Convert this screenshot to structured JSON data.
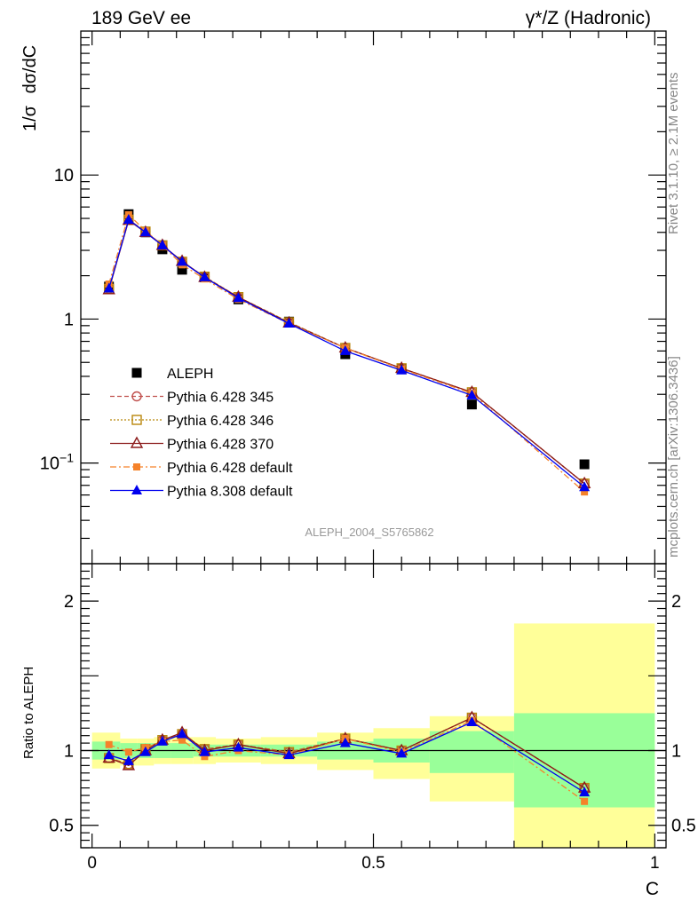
{
  "header": {
    "left": "189 GeV ee",
    "right": "γ*/Z (Hadronic)"
  },
  "side_text": {
    "rivet": "Rivet 3.1.10, ≥ 2.1M events",
    "mcplots": "mcplots.cern.ch [arXiv:1306.3436]"
  },
  "watermark": "ALEPH_2004_S5765862",
  "colors": {
    "aleph": "#000000",
    "p345": "#c0504d",
    "p346": "#b8860b",
    "p370": "#8b1a1a",
    "p6default": "#f5822a",
    "p8default": "#0000ee",
    "band_inner": "#99ff99",
    "band_outer": "#ffff99"
  },
  "chart_data": [
    {
      "type": "scatter",
      "panel": "main",
      "ylabel_parts": [
        "1/σ",
        "dσ/dC"
      ],
      "yscale": "log",
      "ylim": [
        0.02,
        100
      ],
      "xlim": [
        -0.02,
        1.02
      ],
      "yticks": [
        {
          "value": 10,
          "label": "10"
        },
        {
          "value": 1,
          "label": "1"
        },
        {
          "value": 0.1,
          "base": "10",
          "exp": "−1"
        }
      ],
      "legend_position": "lower-left",
      "x": [
        0.03,
        0.065,
        0.095,
        0.125,
        0.16,
        0.2,
        0.26,
        0.35,
        0.45,
        0.55,
        0.675,
        0.875
      ],
      "series": [
        {
          "name": "ALEPH",
          "key": "aleph",
          "marker": "square",
          "style": "none",
          "values": [
            1.68,
            5.35,
            4.0,
            3.05,
            2.2,
            1.95,
            1.37,
            0.96,
            0.57,
            0.45,
            0.255,
            0.098
          ]
        },
        {
          "name": "Pythia 6.428 345",
          "key": "p345",
          "marker": "circle-open",
          "style": "dashed",
          "values": [
            1.62,
            4.9,
            4.05,
            3.25,
            2.5,
            1.97,
            1.42,
            0.95,
            0.63,
            0.455,
            0.31,
            0.072
          ]
        },
        {
          "name": "Pythia 6.428 346",
          "key": "p346",
          "marker": "square-open",
          "style": "dotted",
          "values": [
            1.62,
            4.9,
            4.05,
            3.25,
            2.5,
            1.97,
            1.42,
            0.95,
            0.63,
            0.455,
            0.31,
            0.072
          ]
        },
        {
          "name": "Pythia 6.428 370",
          "key": "p370",
          "marker": "triangle-open",
          "style": "solid",
          "values": [
            1.6,
            4.85,
            4.0,
            3.25,
            2.52,
            1.95,
            1.42,
            0.94,
            0.63,
            0.455,
            0.31,
            0.072
          ]
        },
        {
          "name": "Pythia 6.428 default",
          "key": "p6default",
          "marker": "square-small",
          "style": "dashdot",
          "values": [
            1.75,
            5.3,
            4.1,
            3.25,
            2.38,
            1.9,
            1.37,
            0.93,
            0.63,
            0.45,
            0.305,
            0.063
          ]
        },
        {
          "name": "Pythia 8.308 default",
          "key": "p8default",
          "marker": "triangle-filled",
          "style": "solid",
          "values": [
            1.63,
            4.9,
            4.0,
            3.25,
            2.5,
            1.95,
            1.4,
            0.93,
            0.6,
            0.44,
            0.295,
            0.068
          ]
        }
      ]
    },
    {
      "type": "line",
      "panel": "ratio",
      "ylabel": "Ratio to ALEPH",
      "xlabel": "C",
      "ylim": [
        0.35,
        2.25
      ],
      "xlim": [
        -0.02,
        1.02
      ],
      "yticks": [
        {
          "value": 2,
          "label": "2"
        },
        {
          "value": 1,
          "label": "1"
        },
        {
          "value": 0.5,
          "label": "0.5"
        }
      ],
      "xticks": [
        {
          "value": 0,
          "label": "0"
        },
        {
          "value": 0.5,
          "label": "0.5"
        },
        {
          "value": 1,
          "label": "1"
        }
      ],
      "bins": [
        {
          "lo": 0.0,
          "hi": 0.05,
          "inner": [
            0.94,
            1.06
          ],
          "outer": [
            0.88,
            1.12
          ]
        },
        {
          "lo": 0.05,
          "hi": 0.08,
          "inner": [
            0.95,
            1.05
          ],
          "outer": [
            0.9,
            1.08
          ]
        },
        {
          "lo": 0.08,
          "hi": 0.11,
          "inner": [
            0.95,
            1.05
          ],
          "outer": [
            0.9,
            1.08
          ]
        },
        {
          "lo": 0.11,
          "hi": 0.14,
          "inner": [
            0.95,
            1.05
          ],
          "outer": [
            0.91,
            1.09
          ]
        },
        {
          "lo": 0.14,
          "hi": 0.18,
          "inner": [
            0.95,
            1.05
          ],
          "outer": [
            0.91,
            1.09
          ]
        },
        {
          "lo": 0.18,
          "hi": 0.22,
          "inner": [
            0.96,
            1.04
          ],
          "outer": [
            0.91,
            1.09
          ]
        },
        {
          "lo": 0.22,
          "hi": 0.3,
          "inner": [
            0.96,
            1.04
          ],
          "outer": [
            0.92,
            1.08
          ]
        },
        {
          "lo": 0.3,
          "hi": 0.4,
          "inner": [
            0.96,
            1.04
          ],
          "outer": [
            0.91,
            1.09
          ]
        },
        {
          "lo": 0.4,
          "hi": 0.5,
          "inner": [
            0.94,
            1.06
          ],
          "outer": [
            0.87,
            1.12
          ]
        },
        {
          "lo": 0.5,
          "hi": 0.6,
          "inner": [
            0.92,
            1.08
          ],
          "outer": [
            0.81,
            1.15
          ]
        },
        {
          "lo": 0.6,
          "hi": 0.75,
          "inner": [
            0.85,
            1.13
          ],
          "outer": [
            0.66,
            1.23
          ]
        },
        {
          "lo": 0.75,
          "hi": 1.0,
          "inner": [
            0.62,
            1.25
          ],
          "outer": [
            0.35,
            1.85
          ]
        }
      ],
      "x": [
        0.03,
        0.065,
        0.095,
        0.125,
        0.16,
        0.2,
        0.26,
        0.35,
        0.45,
        0.55,
        0.675,
        0.875
      ],
      "series": [
        {
          "name": "Pythia 6.428 345",
          "key": "p345",
          "marker": "circle-open",
          "style": "dashed",
          "values": [
            0.95,
            0.91,
            1.01,
            1.07,
            1.11,
            1.01,
            1.04,
            0.99,
            1.08,
            1.0,
            1.22,
            0.75
          ]
        },
        {
          "name": "Pythia 6.428 346",
          "key": "p346",
          "marker": "square-open",
          "style": "dotted",
          "values": [
            0.95,
            0.91,
            1.01,
            1.07,
            1.11,
            1.01,
            1.04,
            0.99,
            1.08,
            1.0,
            1.22,
            0.75
          ]
        },
        {
          "name": "Pythia 6.428 370",
          "key": "p370",
          "marker": "triangle-open",
          "style": "solid",
          "values": [
            0.95,
            0.9,
            1.0,
            1.07,
            1.12,
            1.0,
            1.04,
            0.98,
            1.08,
            1.0,
            1.22,
            0.75
          ]
        },
        {
          "name": "Pythia 6.428 default",
          "key": "p6default",
          "marker": "square-small",
          "style": "dashdot",
          "values": [
            1.04,
            0.99,
            1.02,
            1.06,
            1.07,
            0.96,
            1.0,
            0.97,
            1.08,
            0.99,
            1.2,
            0.66
          ]
        },
        {
          "name": "Pythia 8.308 default",
          "key": "p8default",
          "marker": "triangle-filled",
          "style": "solid",
          "values": [
            0.97,
            0.93,
            0.99,
            1.06,
            1.11,
            0.99,
            1.02,
            0.97,
            1.05,
            0.98,
            1.19,
            0.72
          ]
        }
      ]
    }
  ]
}
